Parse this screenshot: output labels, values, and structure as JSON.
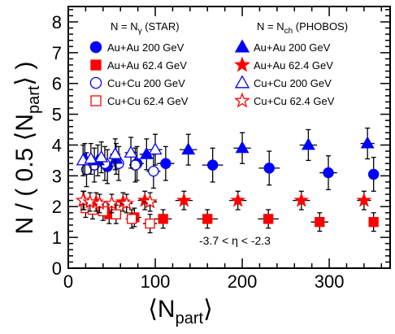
{
  "chart_data": {
    "type": "scatter",
    "xlabel": "⟨N",
    "xlabel_sub": "part",
    "xlabel_close": "⟩",
    "ylabel_prefix": "N / ( 0.5 ⟨N",
    "ylabel_sub": "part",
    "ylabel_suffix": "⟩ )",
    "xlim": [
      0,
      370
    ],
    "ylim": [
      0,
      8.5
    ],
    "x_ticks": [
      0,
      100,
      200,
      300
    ],
    "y_ticks": [
      0,
      1,
      2,
      3,
      4,
      5,
      6,
      7,
      8
    ],
    "annotation": "-3.7 < η < -2.3",
    "legend_groups": [
      {
        "prefix": "N = N",
        "sub": "γ",
        "suffix": " (STAR)"
      },
      {
        "prefix": "N = N",
        "sub": "ch",
        "suffix": " (PHOBOS)"
      }
    ],
    "series": [
      {
        "name": "Au+Au 200 GeV",
        "group": 0,
        "marker": "circle",
        "filled": true,
        "color": "#0000ff",
        "x": [
          45,
          79,
          112,
          166,
          231,
          299,
          351
        ],
        "y": [
          3.3,
          3.4,
          3.4,
          3.35,
          3.25,
          3.1,
          3.05
        ],
        "yerr": [
          0.55,
          0.55,
          0.55,
          0.55,
          0.55,
          0.55,
          0.55
        ],
        "xerr": [
          7,
          8,
          10,
          12,
          12,
          10,
          5
        ]
      },
      {
        "name": "Au+Au 62.4 GeV",
        "group": 0,
        "marker": "square",
        "filled": true,
        "color": "#ff0000",
        "x": [
          47,
          76,
          109,
          160,
          230,
          289,
          351
        ],
        "y": [
          1.75,
          1.65,
          1.6,
          1.6,
          1.6,
          1.5,
          1.5
        ],
        "yerr": [
          0.3,
          0.3,
          0.3,
          0.3,
          0.3,
          0.3,
          0.3
        ],
        "xerr": [
          7,
          8,
          10,
          12,
          12,
          10,
          5
        ]
      },
      {
        "name": "Cu+Cu 200 GeV",
        "group": 0,
        "marker": "circle",
        "filled": false,
        "color": "#0000ff",
        "x": [
          21,
          30,
          42,
          58,
          77,
          98
        ],
        "y": [
          3.2,
          3.35,
          3.4,
          3.4,
          3.35,
          3.15
        ],
        "yerr": [
          0.55,
          0.55,
          0.55,
          0.55,
          0.55,
          0.55
        ],
        "xerr": [
          3,
          4,
          5,
          6,
          7,
          8
        ]
      },
      {
        "name": "Cu+Cu 62.4 GeV",
        "group": 0,
        "marker": "square",
        "filled": false,
        "color": "#ff0000",
        "x": [
          20,
          28,
          40,
          55,
          73,
          94
        ],
        "y": [
          1.95,
          1.9,
          1.85,
          1.75,
          1.6,
          1.45
        ],
        "yerr": [
          0.3,
          0.3,
          0.3,
          0.3,
          0.3,
          0.3
        ],
        "xerr": [
          3,
          4,
          5,
          6,
          7,
          8
        ]
      },
      {
        "name": "Au+Au 200 GeV",
        "group": 1,
        "marker": "triangle",
        "filled": true,
        "color": "#0000ff",
        "x": [
          19,
          34,
          55,
          90,
          138,
          200,
          276,
          344
        ],
        "y": [
          3.55,
          3.5,
          3.55,
          3.7,
          3.85,
          3.9,
          4.0,
          4.05
        ],
        "yerr": [
          0.5,
          0.5,
          0.5,
          0.5,
          0.5,
          0.5,
          0.5,
          0.5
        ],
        "xerr": [
          4,
          5,
          6,
          8,
          10,
          10,
          10,
          8
        ]
      },
      {
        "name": "Au+Au 62.4 GeV",
        "group": 1,
        "marker": "star",
        "filled": true,
        "color": "#ff0000",
        "x": [
          18,
          32,
          63,
          88,
          133,
          195,
          268,
          340
        ],
        "y": [
          2.2,
          2.15,
          2.15,
          2.2,
          2.2,
          2.2,
          2.2,
          2.2
        ],
        "yerr": [
          0.3,
          0.3,
          0.3,
          0.3,
          0.3,
          0.3,
          0.3,
          0.3
        ],
        "xerr": [
          4,
          5,
          6,
          8,
          10,
          10,
          10,
          8
        ]
      },
      {
        "name": "Cu+Cu 200 GeV",
        "group": 1,
        "marker": "triangle",
        "filled": false,
        "color": "#0000ff",
        "x": [
          17,
          26,
          38,
          54,
          72,
          100
        ],
        "y": [
          3.5,
          3.55,
          3.6,
          3.7,
          3.75,
          3.85
        ],
        "yerr": [
          0.5,
          0.5,
          0.5,
          0.5,
          0.5,
          0.5
        ],
        "xerr": [
          3,
          4,
          5,
          6,
          7,
          8
        ]
      },
      {
        "name": "Cu+Cu 62.4 GeV",
        "group": 1,
        "marker": "star",
        "filled": false,
        "color": "#ff0000",
        "x": [
          17,
          25,
          36,
          50,
          67,
          94
        ],
        "y": [
          2.2,
          2.15,
          2.1,
          2.1,
          2.1,
          2.15
        ],
        "yerr": [
          0.3,
          0.3,
          0.3,
          0.3,
          0.3,
          0.3
        ],
        "xerr": [
          3,
          4,
          5,
          6,
          7,
          8
        ]
      }
    ]
  }
}
